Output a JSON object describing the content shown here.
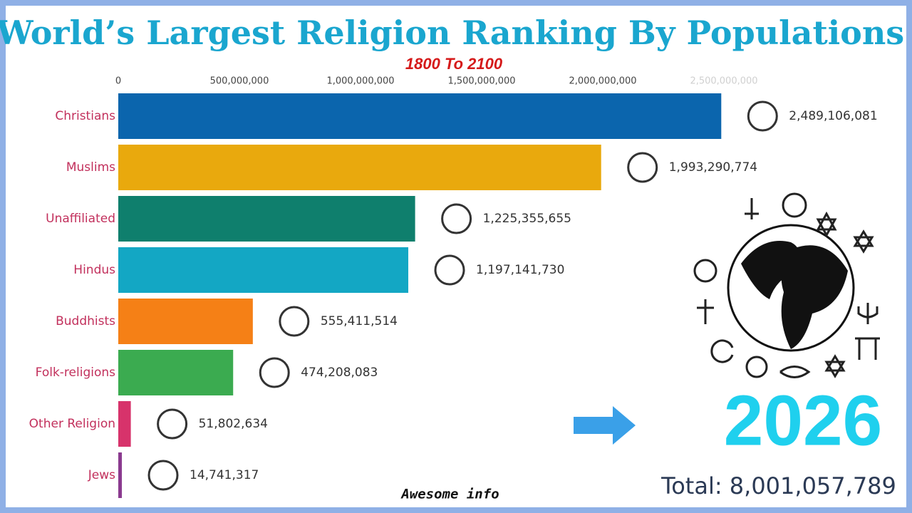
{
  "chart_data": {
    "type": "bar",
    "orientation": "horizontal",
    "title": "World’s Largest Religion Ranking By Populations",
    "subtitle": "1800 To 2100",
    "categories": [
      "Christians",
      "Muslims",
      "Unaffiliated",
      "Hindus",
      "Buddhists",
      "Folk-religions",
      "Other Religion",
      "Jews"
    ],
    "values": [
      2489106081,
      1993290774,
      1225355655,
      1197141730,
      555411514,
      474208083,
      51802634,
      14741317
    ],
    "value_labels": [
      "2,489,106,081",
      "1,993,290,774",
      "1,225,355,655",
      "1,197,141,730",
      "555,411,514",
      "474,208,083",
      "51,802,634",
      "14,741,317"
    ],
    "colors": [
      "#0b65ad",
      "#e9a90d",
      "#0f7f6d",
      "#13a7c4",
      "#f58016",
      "#3bab50",
      "#d7336b",
      "#8a3a8f"
    ],
    "xlim": [
      0,
      2500000000
    ],
    "xticks": [
      0,
      {
        "value": 500000000,
        "label": "500,000,000"
      },
      {
        "value": 1000000000,
        "label": "1,000,000,000"
      },
      {
        "value": 1500000000,
        "label": "1,500,000,000"
      },
      {
        "value": 2000000000,
        "label": "2,000,000,000"
      },
      {
        "value": 2500000000,
        "label": "2,500,000,000"
      }
    ],
    "grid": false,
    "year": "2026",
    "total": "Total: 8,001,057,789",
    "watermark": "Awesome info"
  }
}
